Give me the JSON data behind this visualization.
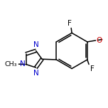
{
  "background_color": "#ffffff",
  "bond_color": "#000000",
  "N_color": "#0000cc",
  "O_color": "#cc0000",
  "F_color": "#000000",
  "bond_width": 1.1,
  "figsize": [
    1.52,
    1.52
  ],
  "dpi": 100,
  "xlim": [
    0.0,
    1.0
  ],
  "ylim": [
    0.1,
    0.95
  ]
}
